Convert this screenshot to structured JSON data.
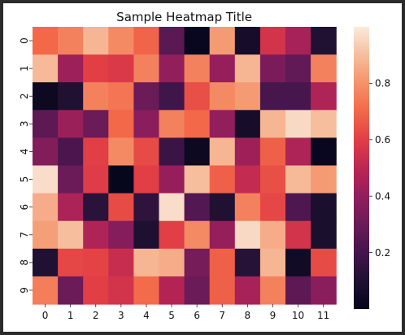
{
  "chart_data": {
    "type": "heatmap",
    "title": "Sample Heatmap Title",
    "xlabel": "",
    "ylabel": "",
    "x_ticks": [
      "0",
      "1",
      "2",
      "3",
      "4",
      "5",
      "6",
      "7",
      "8",
      "9",
      "10",
      "11"
    ],
    "y_ticks": [
      "0",
      "1",
      "2",
      "3",
      "4",
      "5",
      "6",
      "7",
      "8",
      "9"
    ],
    "colormap": "rocket",
    "value_range": [
      0.0,
      1.0
    ],
    "colorbar": {
      "ticks": [
        0.2,
        0.4,
        0.6,
        0.8
      ],
      "tick_labels": [
        "0.2",
        "0.4",
        "0.6",
        "0.8"
      ],
      "placement": "right"
    },
    "grid": false,
    "values": [
      [
        0.7,
        0.76,
        0.88,
        0.78,
        0.69,
        0.26,
        0.02,
        0.82,
        0.07,
        0.56,
        0.45,
        0.1
      ],
      [
        0.89,
        0.43,
        0.6,
        0.58,
        0.76,
        0.4,
        0.76,
        0.41,
        0.88,
        0.34,
        0.28,
        0.76
      ],
      [
        0.03,
        0.1,
        0.76,
        0.73,
        0.3,
        0.19,
        0.64,
        0.78,
        0.82,
        0.21,
        0.21,
        0.47
      ],
      [
        0.27,
        0.42,
        0.3,
        0.7,
        0.38,
        0.76,
        0.7,
        0.4,
        0.07,
        0.88,
        0.96,
        0.9
      ],
      [
        0.36,
        0.22,
        0.6,
        0.78,
        0.63,
        0.17,
        0.03,
        0.88,
        0.43,
        0.68,
        0.47,
        0.02
      ],
      [
        0.97,
        0.3,
        0.59,
        0.01,
        0.6,
        0.41,
        0.9,
        0.68,
        0.52,
        0.64,
        0.89,
        0.82
      ],
      [
        0.86,
        0.46,
        0.13,
        0.63,
        0.14,
        0.97,
        0.24,
        0.1,
        0.76,
        0.62,
        0.23,
        0.08
      ],
      [
        0.83,
        0.9,
        0.47,
        0.37,
        0.09,
        0.6,
        0.78,
        0.41,
        0.96,
        0.86,
        0.56,
        0.08
      ],
      [
        0.1,
        0.62,
        0.61,
        0.53,
        0.88,
        0.86,
        0.33,
        0.68,
        0.12,
        0.88,
        0.05,
        0.63
      ],
      [
        0.75,
        0.3,
        0.6,
        0.56,
        0.71,
        0.48,
        0.3,
        0.68,
        0.45,
        0.76,
        0.27,
        0.38
      ]
    ]
  }
}
